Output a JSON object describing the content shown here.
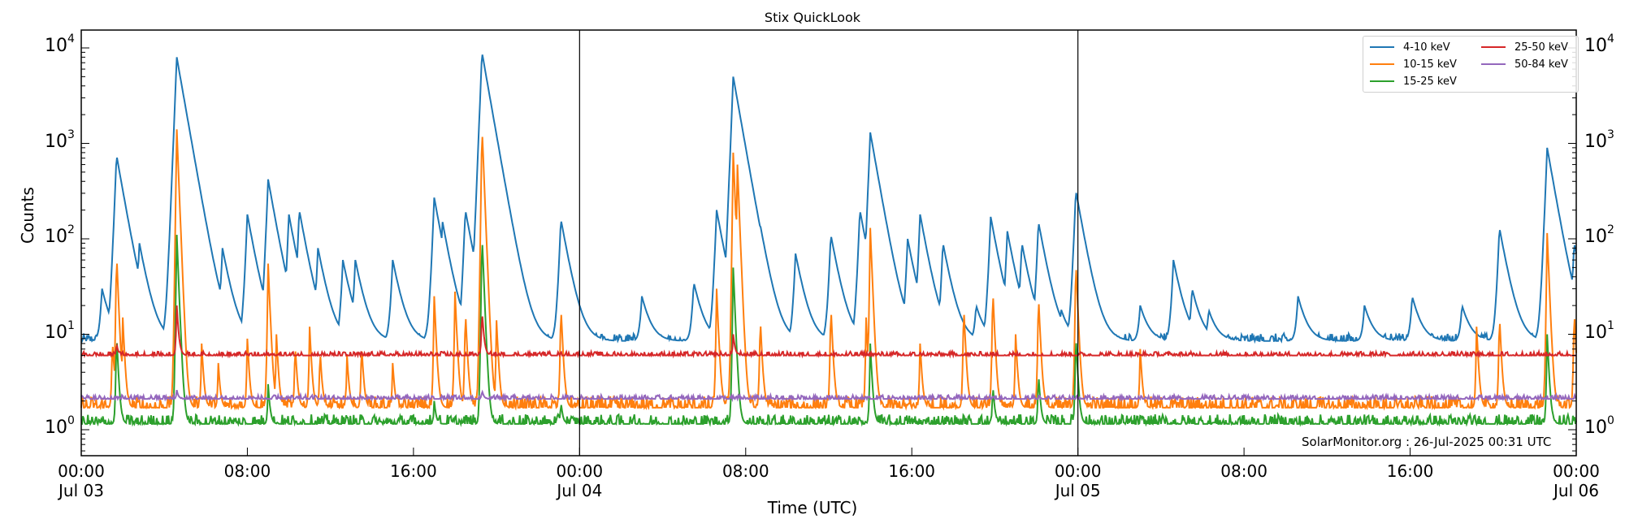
{
  "page": {
    "title": "Stix QuickLook",
    "credit": "SolarMonitor.org : 26-Jul-2025 00:31 UTC"
  },
  "axes": {
    "xlabel": "Time (UTC)",
    "ylabel": "Counts",
    "xticks": [
      {
        "time": "00:00",
        "date": "Jul 03"
      },
      {
        "time": "08:00",
        "date": ""
      },
      {
        "time": "16:00",
        "date": ""
      },
      {
        "time": "00:00",
        "date": "Jul 04"
      },
      {
        "time": "08:00",
        "date": ""
      },
      {
        "time": "16:00",
        "date": ""
      },
      {
        "time": "00:00",
        "date": "Jul 05"
      },
      {
        "time": "08:00",
        "date": ""
      },
      {
        "time": "16:00",
        "date": ""
      },
      {
        "time": "00:00",
        "date": "Jul 06"
      }
    ],
    "yticks": [
      {
        "base": "10",
        "exp": "4"
      },
      {
        "base": "10",
        "exp": "3"
      },
      {
        "base": "10",
        "exp": "2"
      },
      {
        "base": "10",
        "exp": "1"
      },
      {
        "base": "10",
        "exp": "0"
      }
    ]
  },
  "legend": [
    {
      "label": "4-10 keV",
      "color": "#1f77b4"
    },
    {
      "label": "10-15 keV",
      "color": "#ff7f0e"
    },
    {
      "label": "15-25 keV",
      "color": "#2ca02c"
    },
    {
      "label": "25-50 keV",
      "color": "#d62728"
    },
    {
      "label": "50-84 keV",
      "color": "#9467bd"
    }
  ],
  "chart_data": {
    "type": "line",
    "title": "Stix QuickLook",
    "xlabel": "Time (UTC)",
    "ylabel": "Counts",
    "yscale": "log",
    "ylim": [
      0.55,
      15000
    ],
    "xlim": [
      "2025-07-03 00:00",
      "2025-07-06 00:00"
    ],
    "x_tick_labels": [
      "00:00 Jul 03",
      "08:00",
      "16:00",
      "00:00 Jul 04",
      "08:00",
      "16:00",
      "00:00 Jul 05",
      "08:00",
      "16:00",
      "00:00 Jul 06"
    ],
    "y_tick_labels": [
      "10^0",
      "10^1",
      "10^2",
      "10^3",
      "10^4"
    ],
    "vertical_day_lines": [
      "2025-07-04 00:00",
      "2025-07-05 00:00"
    ],
    "legend_position": "upper right",
    "grid": false,
    "series": [
      {
        "name": "4-10 keV",
        "color": "#1f77b4",
        "baseline": 8.5,
        "peaks_hours_value": [
          [
            1.0,
            30
          ],
          [
            1.7,
            750
          ],
          [
            2.4,
            55
          ],
          [
            2.8,
            90
          ],
          [
            4.3,
            50
          ],
          [
            4.6,
            8000
          ],
          [
            5.5,
            85
          ],
          [
            5.9,
            85
          ],
          [
            6.8,
            80
          ],
          [
            8.0,
            180
          ],
          [
            9.0,
            420
          ],
          [
            9.3,
            150
          ],
          [
            10.0,
            180
          ],
          [
            10.5,
            200
          ],
          [
            11.4,
            80
          ],
          [
            12.6,
            60
          ],
          [
            13.2,
            60
          ],
          [
            15.0,
            60
          ],
          [
            17.0,
            270
          ],
          [
            17.4,
            150
          ],
          [
            18.5,
            200
          ],
          [
            19.3,
            9000
          ],
          [
            20.0,
            100
          ],
          [
            20.4,
            100
          ],
          [
            23.1,
            160
          ],
          [
            23.6,
            20
          ],
          [
            27.0,
            25
          ],
          [
            29.5,
            35
          ],
          [
            30.6,
            200
          ],
          [
            31.4,
            5000
          ],
          [
            31.8,
            90
          ],
          [
            32.7,
            140
          ],
          [
            34.4,
            70
          ],
          [
            36.1,
            110
          ],
          [
            37.5,
            200
          ],
          [
            38.0,
            1300
          ],
          [
            39.8,
            100
          ],
          [
            40.4,
            180
          ],
          [
            41.5,
            90
          ],
          [
            43.1,
            20
          ],
          [
            43.8,
            170
          ],
          [
            44.6,
            120
          ],
          [
            45.3,
            90
          ],
          [
            46.1,
            150
          ],
          [
            47.2,
            18
          ],
          [
            47.9,
            320
          ],
          [
            51.0,
            20
          ],
          [
            52.6,
            60
          ],
          [
            53.5,
            30
          ],
          [
            54.3,
            18
          ],
          [
            58.6,
            25
          ],
          [
            61.8,
            20
          ],
          [
            64.1,
            25
          ],
          [
            66.5,
            20
          ],
          [
            68.3,
            130
          ],
          [
            70.6,
            900
          ],
          [
            71.9,
            90
          ]
        ]
      },
      {
        "name": "10-15 keV",
        "color": "#ff7f0e",
        "baseline": 1.7,
        "peaks_hours_value": [
          [
            1.5,
            9
          ],
          [
            1.7,
            70
          ],
          [
            2.0,
            15
          ],
          [
            4.6,
            1400
          ],
          [
            5.8,
            8
          ],
          [
            6.6,
            5
          ],
          [
            8.0,
            9
          ],
          [
            9.0,
            55
          ],
          [
            9.4,
            10
          ],
          [
            10.3,
            8
          ],
          [
            11.0,
            12
          ],
          [
            11.5,
            7
          ],
          [
            12.8,
            6
          ],
          [
            13.5,
            8
          ],
          [
            15.0,
            5
          ],
          [
            17.0,
            25
          ],
          [
            18.0,
            28
          ],
          [
            18.5,
            18
          ],
          [
            19.3,
            1500
          ],
          [
            20.0,
            14
          ],
          [
            23.1,
            20
          ],
          [
            30.6,
            30
          ],
          [
            31.4,
            800
          ],
          [
            31.6,
            600
          ],
          [
            32.7,
            15
          ],
          [
            36.1,
            20
          ],
          [
            37.8,
            15
          ],
          [
            38.0,
            130
          ],
          [
            40.4,
            8
          ],
          [
            42.5,
            20
          ],
          [
            43.9,
            30
          ],
          [
            45.0,
            10
          ],
          [
            46.1,
            26
          ],
          [
            47.9,
            60
          ],
          [
            51.0,
            7
          ],
          [
            67.2,
            12
          ],
          [
            68.3,
            16
          ],
          [
            70.6,
            115
          ],
          [
            71.9,
            18
          ]
        ]
      },
      {
        "name": "15-25 keV",
        "color": "#2ca02c",
        "baseline": 1.15,
        "peaks_hours_value": [
          [
            1.7,
            10
          ],
          [
            4.6,
            110
          ],
          [
            9.0,
            3
          ],
          [
            17.0,
            2
          ],
          [
            19.3,
            110
          ],
          [
            23.1,
            2
          ],
          [
            31.4,
            50
          ],
          [
            38.0,
            8
          ],
          [
            43.9,
            3
          ],
          [
            46.1,
            4
          ],
          [
            47.9,
            10
          ],
          [
            70.6,
            10
          ]
        ]
      },
      {
        "name": "25-50 keV",
        "color": "#d62728",
        "baseline": 6.0,
        "peaks_hours_value": [
          [
            1.7,
            8
          ],
          [
            4.6,
            20
          ],
          [
            19.3,
            18
          ],
          [
            31.4,
            10
          ]
        ]
      },
      {
        "name": "50-84 keV",
        "color": "#9467bd",
        "baseline": 2.1,
        "peaks_hours_value": [
          [
            4.6,
            2.6
          ],
          [
            19.3,
            2.6
          ]
        ]
      }
    ]
  }
}
